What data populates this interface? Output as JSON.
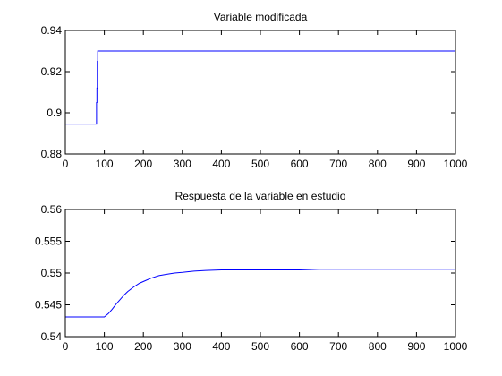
{
  "chart_data": [
    {
      "type": "line",
      "title": "Variable modificada",
      "xlabel": "",
      "ylabel": "",
      "xlim": [
        0,
        1000
      ],
      "ylim": [
        0.88,
        0.94
      ],
      "xticks": [
        0,
        100,
        200,
        300,
        400,
        500,
        600,
        700,
        800,
        900,
        1000
      ],
      "yticks": [
        0.88,
        0.9,
        0.92,
        0.94
      ],
      "xtick_labels": [
        "0",
        "100",
        "200",
        "300",
        "400",
        "500",
        "600",
        "700",
        "800",
        "900",
        "1000"
      ],
      "ytick_labels": [
        "0.88",
        "0.9",
        "0.92",
        "0.94"
      ],
      "grid": false,
      "line_color": "#0000ff",
      "series": [
        {
          "x": [
            0,
            80,
            80,
            81,
            81,
            82,
            82,
            83,
            83,
            1000
          ],
          "y": [
            0.8945,
            0.8945,
            0.905,
            0.905,
            0.912,
            0.912,
            0.925,
            0.925,
            0.93,
            0.93
          ]
        }
      ]
    },
    {
      "type": "line",
      "title": "Respuesta de la variable en estudio",
      "xlabel": "",
      "ylabel": "",
      "xlim": [
        0,
        1000
      ],
      "ylim": [
        0.54,
        0.56
      ],
      "xticks": [
        0,
        100,
        200,
        300,
        400,
        500,
        600,
        700,
        800,
        900,
        1000
      ],
      "yticks": [
        0.54,
        0.545,
        0.55,
        0.555,
        0.56
      ],
      "xtick_labels": [
        "0",
        "100",
        "200",
        "300",
        "400",
        "500",
        "600",
        "700",
        "800",
        "900",
        "1000"
      ],
      "ytick_labels": [
        "0.54",
        "0.545",
        "0.55",
        "0.555",
        "0.56"
      ],
      "grid": false,
      "line_color": "#0000ff",
      "series": [
        {
          "x": [
            0,
            100,
            110,
            120,
            130,
            140,
            150,
            160,
            175,
            190,
            205,
            220,
            240,
            260,
            280,
            300,
            330,
            360,
            400,
            450,
            500,
            550,
            600,
            650,
            700,
            800,
            900,
            1000
          ],
          "y": [
            0.5431,
            0.5431,
            0.5436,
            0.5443,
            0.5451,
            0.5458,
            0.5465,
            0.5471,
            0.5478,
            0.5484,
            0.5488,
            0.5492,
            0.5496,
            0.5498,
            0.55,
            0.5501,
            0.5503,
            0.5504,
            0.5505,
            0.5505,
            0.5505,
            0.5505,
            0.5505,
            0.5506,
            0.5506,
            0.5506,
            0.5506,
            0.5506
          ]
        }
      ]
    }
  ]
}
